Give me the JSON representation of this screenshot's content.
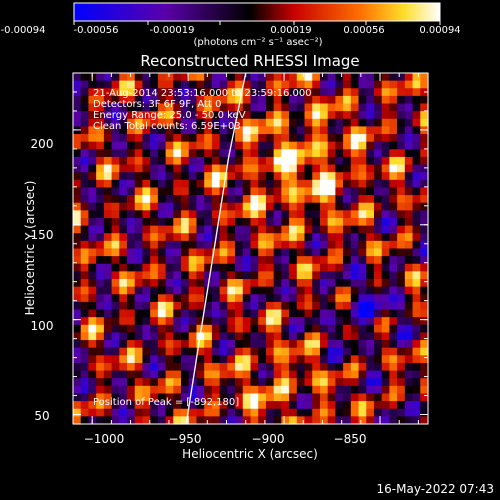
{
  "colorbar": {
    "tick_labels": [
      "-0.00094",
      "-0.00056",
      "-0.00019",
      "0.00019",
      "0.00056",
      "0.00094"
    ],
    "units": "(photons cm⁻² s⁻¹ asec⁻²)",
    "range": [
      -0.00094,
      0.00094
    ]
  },
  "chart_data": {
    "type": "heatmap",
    "title": "Reconstructed RHESSI Image",
    "xlabel": "Heliocentric X (arcsec)",
    "ylabel": "Heliocentric Y (arcsec)",
    "xlim": [
      -1010,
      -825
    ],
    "ylim": [
      45,
      230
    ],
    "x_ticks": [
      -1000,
      -950,
      -900,
      -850
    ],
    "y_ticks": [
      50,
      100,
      150,
      200
    ],
    "x_tick_labels": [
      "−1000",
      "−950",
      "−900",
      "−850"
    ],
    "y_tick_labels": [
      "50",
      "100",
      "150",
      "200"
    ],
    "info_lines": [
      "21-Aug-2014 23:53:16.000 to 23:59:16.000",
      "Detectors: 3F 6F 9F, Att 0",
      "Energy Range: 25.0 - 50.0 keV",
      "Clean     Total counts: 6.59E+03"
    ],
    "peak_label": "Position of Peak = [-892,180]",
    "peak_position": [
      -892,
      180
    ],
    "limb_color": "#ffffff"
  },
  "footer": {
    "timestamp": "16-May-2022 07:43"
  }
}
